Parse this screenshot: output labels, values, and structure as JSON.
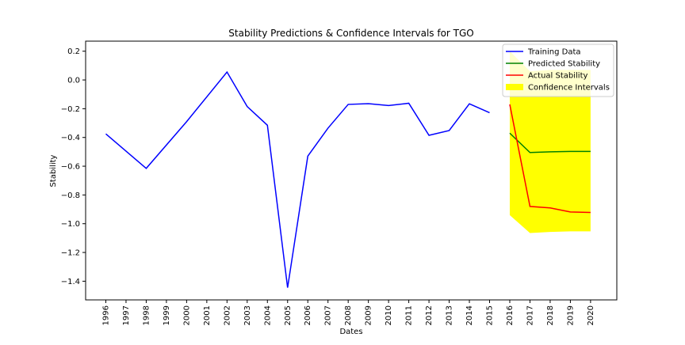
{
  "chart_data": {
    "type": "line",
    "title": "Stability Predictions & Confidence Intervals for TGO",
    "xlabel": "Dates",
    "ylabel": "Stability",
    "x_ticks": [
      "1996",
      "1997",
      "1998",
      "1999",
      "2000",
      "2001",
      "2002",
      "2003",
      "2004",
      "2005",
      "2006",
      "2007",
      "2008",
      "2009",
      "2010",
      "2011",
      "2012",
      "2013",
      "2014",
      "2015",
      "2016",
      "2017",
      "2018",
      "2019",
      "2020"
    ],
    "y_ticks": [
      0.2,
      0.0,
      -0.2,
      -0.4,
      -0.6,
      -0.8,
      -1.0,
      -1.2,
      -1.4
    ],
    "y_tick_labels": [
      "0.2",
      "0.0",
      "−0.2",
      "−0.4",
      "−0.6",
      "−0.8",
      "−1.0",
      "−1.2",
      "−1.4"
    ],
    "xlim": [
      1995,
      2021.3
    ],
    "ylim": [
      -1.53,
      0.27
    ],
    "grid": false,
    "legend_position": "top-right",
    "series": [
      {
        "name": "Training Data",
        "color": "#0000ff",
        "x": [
          1996,
          1998,
          2000,
          2002,
          2003,
          2004,
          2005,
          2006,
          2007,
          2008,
          2009,
          2010,
          2011,
          2012,
          2013,
          2014,
          2015
        ],
        "y": [
          -0.375,
          -0.615,
          -0.29,
          0.055,
          -0.185,
          -0.315,
          -1.445,
          -0.53,
          -0.335,
          -0.17,
          -0.165,
          -0.178,
          -0.162,
          -0.385,
          -0.352,
          -0.166,
          -0.228
        ]
      },
      {
        "name": "Predicted Stability",
        "color": "#008000",
        "x": [
          2016,
          2017,
          2018,
          2019,
          2020
        ],
        "y": [
          -0.37,
          -0.505,
          -0.5,
          -0.497,
          -0.497
        ]
      },
      {
        "name": "Actual Stability",
        "color": "#ff0000",
        "x": [
          2016,
          2017,
          2018,
          2019,
          2020
        ],
        "y": [
          -0.17,
          -0.88,
          -0.89,
          -0.918,
          -0.922
        ]
      }
    ],
    "confidence_interval": {
      "name": "Confidence Intervals",
      "color": "#ffff00",
      "x": [
        2016,
        2017,
        2018,
        2019,
        2020
      ],
      "lower": [
        -0.94,
        -1.065,
        -1.057,
        -1.053,
        -1.053
      ],
      "upper": [
        0.2,
        0.06,
        0.07,
        0.07,
        0.07
      ]
    }
  }
}
